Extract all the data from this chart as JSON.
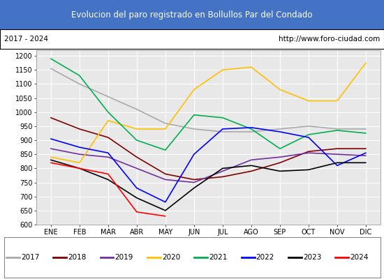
{
  "title": "Evolucion del paro registrado en Bollullos Par del Condado",
  "subtitle_left": "2017 - 2024",
  "subtitle_right": "http://www.foro-ciudad.com",
  "title_bg": "#4472c4",
  "title_color": "white",
  "plot_bg": "#e8e8e8",
  "months": [
    "ENE",
    "FEB",
    "MAR",
    "ABR",
    "MAY",
    "JUN",
    "JUL",
    "AGO",
    "SEP",
    "OCT",
    "NOV",
    "DIC"
  ],
  "ylim": [
    600,
    1220
  ],
  "yticks": [
    600,
    650,
    700,
    750,
    800,
    850,
    900,
    950,
    1000,
    1050,
    1100,
    1150,
    1200
  ],
  "series": {
    "2017": {
      "color": "#aaaaaa",
      "data": [
        1155,
        1100,
        1055,
        1010,
        960,
        940,
        930,
        930,
        940,
        950,
        940,
        940
      ]
    },
    "2018": {
      "color": "#7f0000",
      "data": [
        980,
        940,
        910,
        840,
        780,
        760,
        770,
        790,
        820,
        860,
        870,
        870
      ]
    },
    "2019": {
      "color": "#7030a0",
      "data": [
        870,
        850,
        840,
        800,
        760,
        750,
        790,
        830,
        840,
        855,
        850,
        845
      ]
    },
    "2020": {
      "color": "#ffc000",
      "data": [
        840,
        820,
        970,
        940,
        940,
        1080,
        1150,
        1160,
        1080,
        1040,
        1040,
        1175
      ]
    },
    "2021": {
      "color": "#00b050",
      "data": [
        1190,
        1130,
        1000,
        900,
        865,
        990,
        980,
        940,
        870,
        920,
        935,
        925
      ]
    },
    "2022": {
      "color": "#0000ff",
      "data": [
        905,
        875,
        855,
        730,
        680,
        850,
        940,
        945,
        930,
        910,
        810,
        855
      ]
    },
    "2023": {
      "color": "#000000",
      "data": [
        830,
        800,
        760,
        695,
        650,
        730,
        800,
        810,
        790,
        795,
        820,
        820
      ]
    },
    "2024": {
      "color": "#ff0000",
      "data": [
        820,
        800,
        780,
        645,
        630,
        null,
        null,
        null,
        null,
        null,
        null,
        null
      ]
    }
  }
}
